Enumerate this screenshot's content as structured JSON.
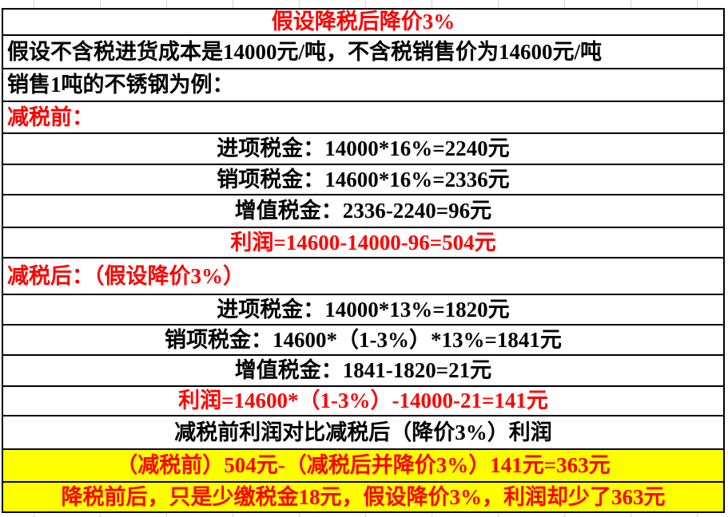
{
  "colors": {
    "highlight_text": "#ff0000",
    "normal_text": "#000000",
    "highlight_bg": "#ffff00",
    "table_border": "#000000",
    "gridline": "#d6d6d6"
  },
  "table": {
    "rows": [
      {
        "id": "title",
        "text": "假设降税后降价3%"
      },
      {
        "id": "assumption",
        "text": "假设不含税进货成本是14000元/吨，不含税销售价为14600元/吨"
      },
      {
        "id": "example",
        "text": "销售1吨的不锈钢为例："
      },
      {
        "id": "before-header",
        "text": "减税前："
      },
      {
        "id": "before-input-tax",
        "text": "进项税金：14000*16%=2240元"
      },
      {
        "id": "before-output-tax",
        "text": "销项税金：14600*16%=2336元"
      },
      {
        "id": "before-vat",
        "text": "增值税金：2336-2240=96元"
      },
      {
        "id": "before-profit",
        "text": "利润=14600-14000-96=504元"
      },
      {
        "id": "after-header",
        "text": "减税后：（假设降价3%）"
      },
      {
        "id": "after-input-tax",
        "text": "进项税金：14000*13%=1820元"
      },
      {
        "id": "after-output-tax",
        "text": "销项税金：14600*（1-3%）*13%=1841元"
      },
      {
        "id": "after-vat",
        "text": "增值税金：1841-1820=21元"
      },
      {
        "id": "after-profit",
        "text": "利润=14600*（1-3%）-14000-21=141元"
      },
      {
        "id": "compare-header",
        "text": "减税前利润对比减税后（降价3%）利润"
      },
      {
        "id": "compare-calc",
        "text": "（减税前）504元-（减税后并降价3%）141元=363元"
      },
      {
        "id": "conclusion",
        "text": "降税前后，只是少缴税金18元，假设降价3%，利润却少了363元"
      }
    ]
  }
}
